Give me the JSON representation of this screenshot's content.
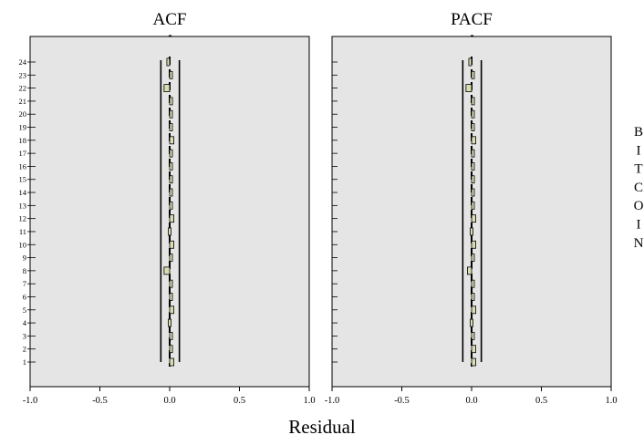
{
  "chart_data": [
    {
      "type": "bar",
      "orientation": "horizontal",
      "title": "ACF",
      "xlabel": "Residual",
      "ylabel": "",
      "xlim": [
        -1.0,
        1.0
      ],
      "x_ticks": [
        "-1.0",
        "-0.5",
        "0.0",
        "0.5",
        "1.0"
      ],
      "categories": [
        1,
        2,
        3,
        4,
        5,
        6,
        7,
        8,
        9,
        10,
        11,
        12,
        13,
        14,
        15,
        16,
        17,
        18,
        19,
        20,
        21,
        22,
        23,
        24
      ],
      "values": [
        0.03,
        0.02,
        0.01,
        -0.01,
        0.03,
        0.01,
        0.01,
        -0.04,
        0.01,
        0.03,
        -0.01,
        0.03,
        0.01,
        0.01,
        0.02,
        0.01,
        0.01,
        0.03,
        0.01,
        0.0,
        0.02,
        -0.04,
        0.0,
        -0.02
      ],
      "confidence_limits": [
        -0.05,
        0.05
      ],
      "bar_color": "#dcdcb4"
    },
    {
      "type": "bar",
      "orientation": "horizontal",
      "title": "PACF",
      "xlabel": "Residual",
      "ylabel": "",
      "xlim": [
        -1.0,
        1.0
      ],
      "x_ticks": [
        "-1.0",
        "-0.5",
        "0.0",
        "0.5",
        "1.0"
      ],
      "categories": [
        1,
        2,
        3,
        4,
        5,
        6,
        7,
        8,
        9,
        10,
        11,
        12,
        13,
        14,
        15,
        16,
        17,
        18,
        19,
        20,
        21,
        22,
        23,
        24
      ],
      "values": [
        0.03,
        0.03,
        0.01,
        -0.01,
        0.03,
        0.01,
        0.01,
        -0.03,
        0.01,
        0.03,
        -0.01,
        0.03,
        0.01,
        0.01,
        0.02,
        0.01,
        0.01,
        0.03,
        0.01,
        0.0,
        0.02,
        -0.04,
        0.0,
        -0.02
      ],
      "confidence_limits": [
        -0.05,
        0.05
      ],
      "bar_color": "#dcdcb4"
    }
  ],
  "figure": {
    "xaxis_title": "Residual",
    "side_label": [
      "B",
      "I",
      "T",
      "C",
      "O",
      "I",
      "N"
    ],
    "panel_bg": "#e5e5e5",
    "ci_line_color": "#000000"
  }
}
